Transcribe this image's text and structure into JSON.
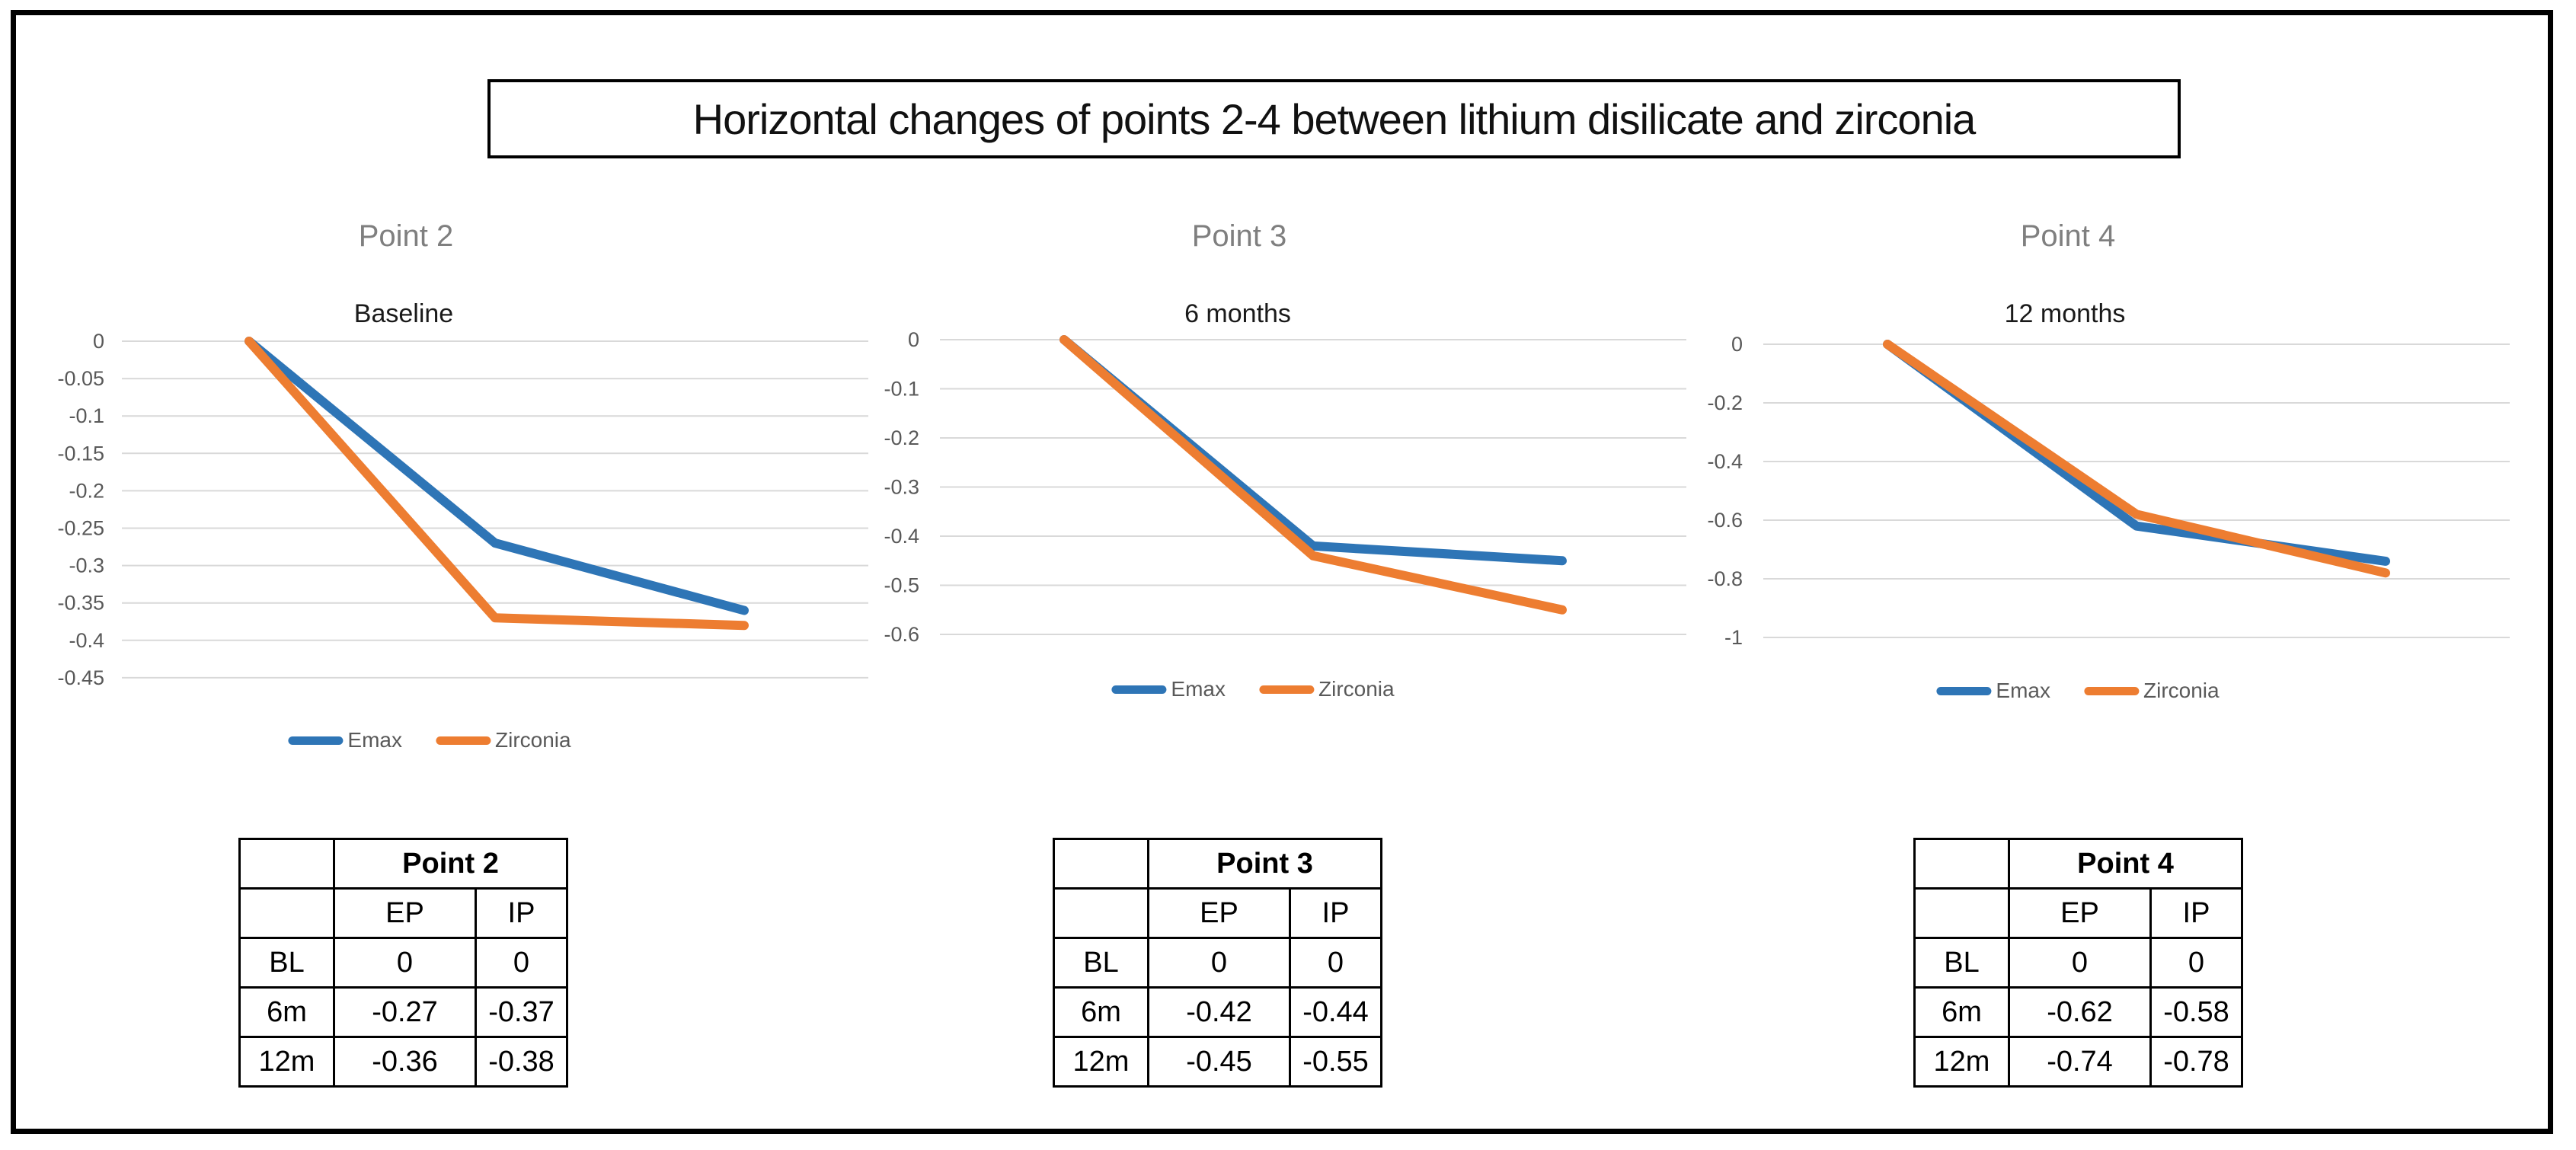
{
  "title": "Horizontal changes of points 2-4 between lithium disilicate and zirconia",
  "colors": {
    "frame_border": "#000000",
    "gridline": "#D9D9D9",
    "axis_text": "#595959",
    "chart_title_gray": "#7F7F7F",
    "emax_blue": "#2E75B6",
    "zirconia_orange": "#ED7D31"
  },
  "chart_data": [
    {
      "type": "line",
      "title": "Point 2",
      "subtitle": "Baseline",
      "categories": [
        "BL",
        "6m",
        "12m"
      ],
      "series": [
        {
          "name": "Emax",
          "color": "#2E75B6",
          "values": [
            0,
            -0.27,
            -0.36
          ]
        },
        {
          "name": "Zirconia",
          "color": "#ED7D31",
          "values": [
            0,
            -0.37,
            -0.38
          ]
        }
      ],
      "ylim": [
        0,
        -0.45
      ],
      "ytick_step": 0.05,
      "yticks": [
        "0",
        "-0.05",
        "-0.1",
        "-0.15",
        "-0.2",
        "-0.25",
        "-0.3",
        "-0.35",
        "-0.4",
        "-0.45"
      ],
      "grid": true,
      "legend_position": "bottom",
      "x_axis_labels_hidden": true
    },
    {
      "type": "line",
      "title": "Point 3",
      "subtitle": "6 months",
      "categories": [
        "BL",
        "6m",
        "12m"
      ],
      "series": [
        {
          "name": "Emax",
          "color": "#2E75B6",
          "values": [
            0,
            -0.42,
            -0.45
          ]
        },
        {
          "name": "Zirconia",
          "color": "#ED7D31",
          "values": [
            0,
            -0.44,
            -0.55
          ]
        }
      ],
      "ylim": [
        0,
        -0.6
      ],
      "ytick_step": 0.1,
      "yticks": [
        "0",
        "-0.1",
        "-0.2",
        "-0.3",
        "-0.4",
        "-0.5",
        "-0.6"
      ],
      "grid": true,
      "legend_position": "bottom",
      "x_axis_labels_hidden": true
    },
    {
      "type": "line",
      "title": "Point 4",
      "subtitle": "12 months",
      "categories": [
        "BL",
        "6m",
        "12m"
      ],
      "series": [
        {
          "name": "Emax",
          "color": "#2E75B6",
          "values": [
            0,
            -0.62,
            -0.74
          ]
        },
        {
          "name": "Zirconia",
          "color": "#ED7D31",
          "values": [
            0,
            -0.58,
            -0.78
          ]
        }
      ],
      "ylim": [
        0,
        -1
      ],
      "ytick_step": 0.2,
      "yticks": [
        "0",
        "-0.2",
        "-0.4",
        "-0.6",
        "-0.8",
        "-1"
      ],
      "grid": true,
      "legend_position": "bottom",
      "x_axis_labels_hidden": true
    }
  ],
  "tables": [
    {
      "title": "Point 2",
      "col_headers": [
        "EP",
        "IP"
      ],
      "rows": [
        [
          "BL",
          "0",
          "0"
        ],
        [
          "6m",
          "-0.27",
          "-0.37"
        ],
        [
          "12m",
          "-0.36",
          "-0.38"
        ]
      ]
    },
    {
      "title": "Point 3",
      "col_headers": [
        "EP",
        "IP"
      ],
      "rows": [
        [
          "BL",
          "0",
          "0"
        ],
        [
          "6m",
          "-0.42",
          "-0.44"
        ],
        [
          "12m",
          "-0.45",
          "-0.55"
        ]
      ]
    },
    {
      "title": "Point 4",
      "col_headers": [
        "EP",
        "IP"
      ],
      "rows": [
        [
          "BL",
          "0",
          "0"
        ],
        [
          "6m",
          "-0.62",
          "-0.58"
        ],
        [
          "12m",
          "-0.74",
          "-0.78"
        ]
      ]
    }
  ]
}
